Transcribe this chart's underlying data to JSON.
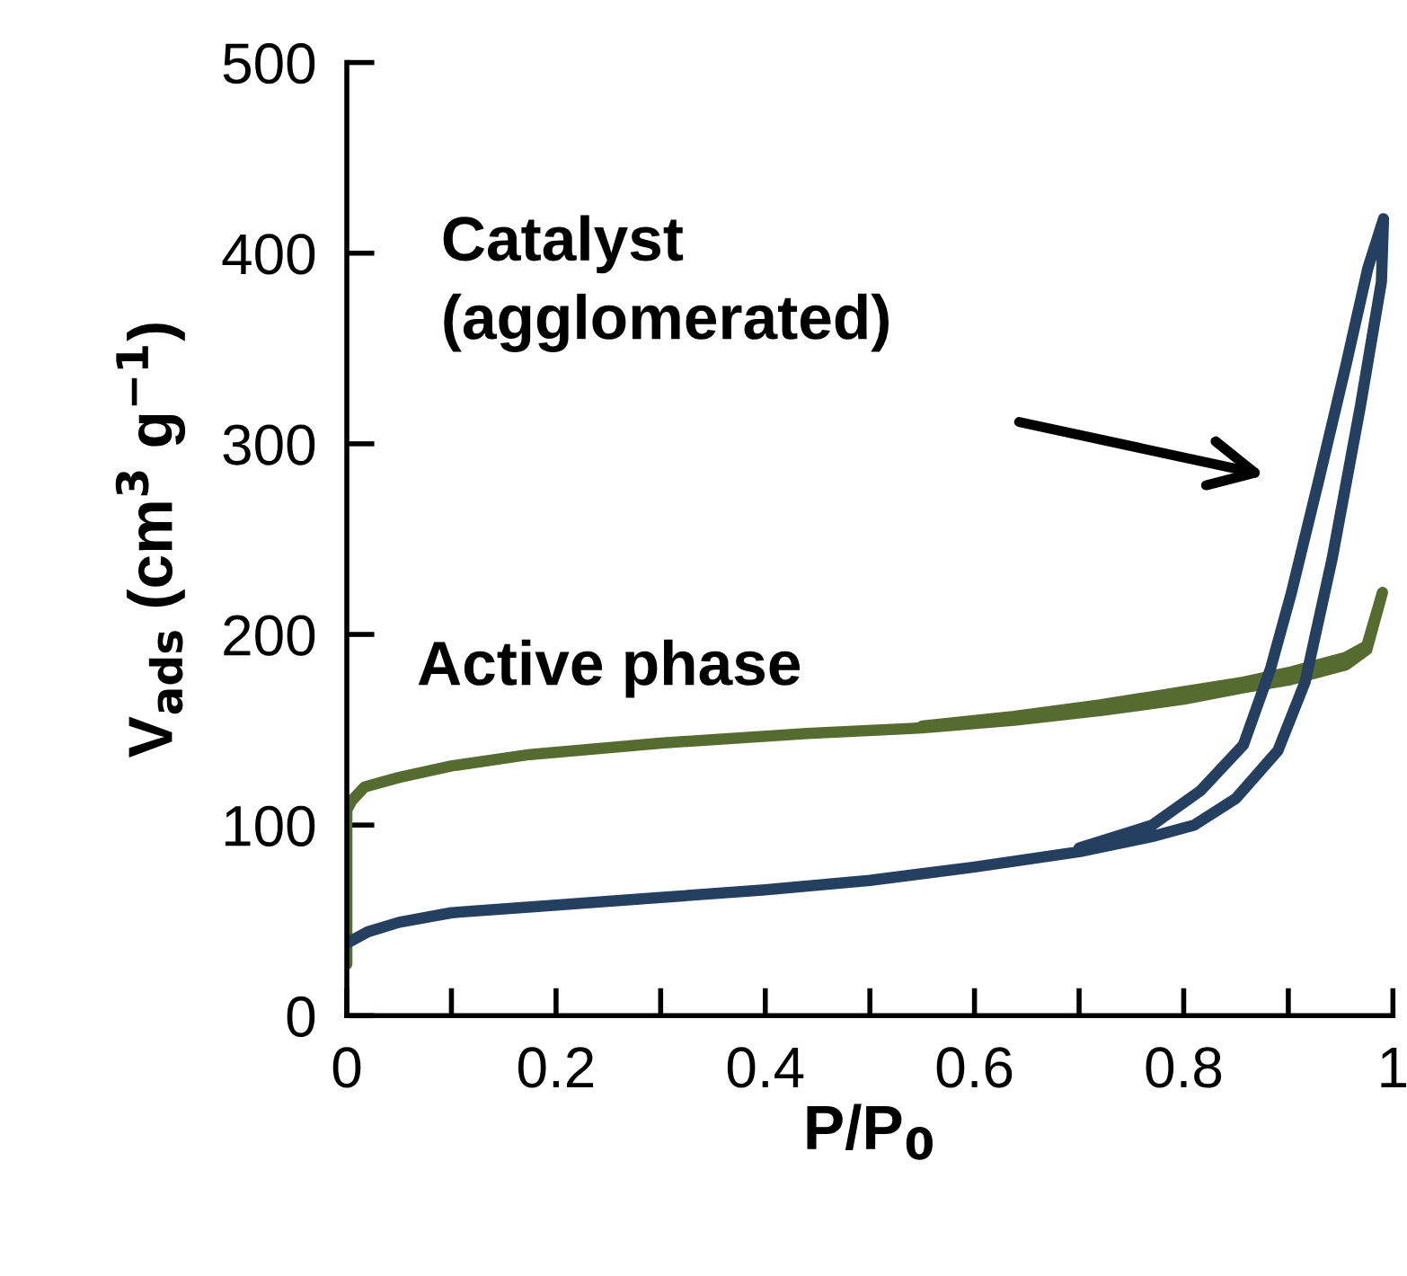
{
  "chart_data": {
    "type": "line",
    "xlabel": "P/P$_{0}$",
    "ylabel": "V$_{ads}$ (cm$^{3}$ g$^{−1}$)",
    "xlim": [
      0,
      1
    ],
    "ylim": [
      0,
      500
    ],
    "xticks": [
      0,
      {
        "value": 0.1,
        "label": null
      },
      0.2,
      {
        "value": 0.3,
        "label": null
      },
      0.4,
      {
        "value": 0.5,
        "label": null
      },
      0.6,
      {
        "value": 0.7,
        "label": null
      },
      0.8,
      {
        "value": 0.9,
        "label": null
      },
      1
    ],
    "yticks": [
      0,
      100,
      200,
      300,
      400,
      500
    ],
    "grid": false,
    "legend": false,
    "marker": "none",
    "line_style": "solid",
    "series": [
      {
        "color": "#556b2f",
        "x": [
          0.0,
          0.0,
          0.0,
          0.005,
          0.017,
          0.05,
          0.1,
          0.175,
          0.3,
          0.44,
          0.55,
          0.638,
          0.72,
          0.8,
          0.857,
          0.9,
          0.955,
          0.975,
          0.99,
          0.975,
          0.955,
          0.9,
          0.857,
          0.8,
          0.72,
          0.638,
          0.55
        ],
        "values": [
          27,
          100,
          108,
          113,
          120,
          125,
          131,
          137,
          143,
          148,
          151,
          155,
          160,
          166,
          172,
          176,
          184,
          192,
          222,
          194,
          188,
          180,
          175,
          170,
          163,
          157,
          152
        ]
      },
      {
        "color": "#243f60",
        "x": [
          0.0,
          0.02,
          0.05,
          0.1,
          0.2,
          0.3,
          0.4,
          0.5,
          0.6,
          0.7,
          0.77,
          0.81,
          0.85,
          0.89,
          0.916,
          0.942,
          0.969,
          0.989,
          0.991,
          0.976,
          0.955,
          0.93,
          0.903,
          0.883,
          0.857,
          0.816,
          0.77,
          0.7
        ],
        "values": [
          38,
          44,
          49,
          54,
          58,
          62,
          66,
          71,
          78,
          86,
          94,
          100,
          114,
          139,
          175,
          240,
          320,
          385,
          418,
          392,
          341,
          283,
          222,
          182,
          142,
          118,
          100,
          88
        ]
      }
    ],
    "annotations": [
      "Catalyst\n(agglomerated)",
      "Active phase"
    ]
  }
}
